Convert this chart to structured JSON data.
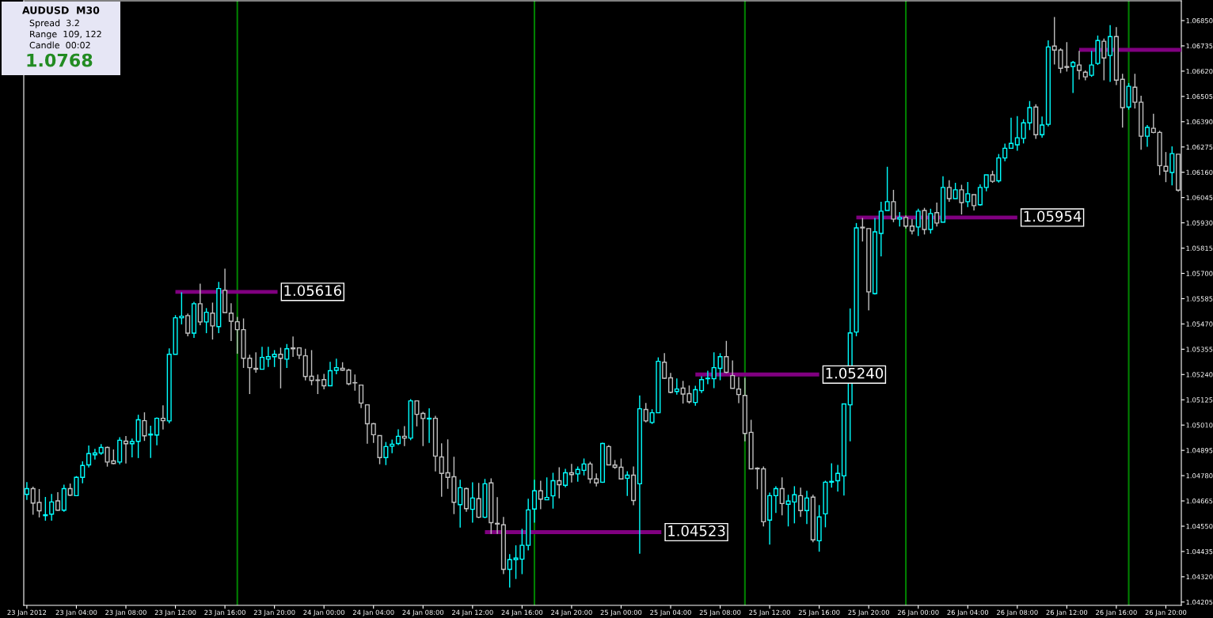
{
  "chart_data": {
    "type": "candlestick",
    "title": "AUDUSD  M30",
    "annotations": [
      "Spread  3.2",
      "Range  109, 122",
      "Candle  00:02",
      "1.0768",
      {
        "text": "1.05616",
        "x": "2012-01-23T20:15",
        "y": 1.05616
      },
      {
        "text": "1.04523",
        "x": "2012-01-25T03:15",
        "y": 1.04523
      },
      {
        "text": "1.05240",
        "x": "2012-01-25T16:00",
        "y": 1.0524
      },
      {
        "text": "1.05954",
        "x": "2012-01-26T08:00",
        "y": 1.05954
      }
    ],
    "colors": [
      "#00ffff",
      "#c0c0c0",
      "#c0c0c0",
      "#00ffff",
      "#00ffff",
      "#c0c0c0",
      "#00ffff",
      "#c0c0c0",
      "#00ffff",
      "#00ffff",
      "#00ffff",
      "#00ffff",
      "#00ffff",
      "#c0c0c0",
      "#c0c0c0",
      "#00ffff",
      "#c0c0c0",
      "#00ffff",
      "#00ffff",
      "#c0c0c0",
      "#00ffff",
      "#00ffff",
      "#c0c0c0",
      "#00ffff",
      "#00ffff",
      "#00ffff",
      "#c0c0c0",
      "#00ffff",
      "#c0c0c0",
      "#00ffff",
      "#c0c0c0",
      "#00ffff",
      "#c0c0c0",
      "#c0c0c0",
      "#c0c0c0",
      "#c0c0c0",
      "#c0c0c0",
      "#c0c0c0",
      "#00ffff",
      "#00ffff",
      "#00ffff",
      "#c0c0c0",
      "#00ffff",
      "#c0c0c0",
      "#c0c0c0",
      "#c0c0c0",
      "#c0c0c0",
      "#c0c0c0",
      "#c0c0c0",
      "#00ffff",
      "#00ffff",
      "#c0c0c0",
      "#c0c0c0",
      "#c0c0c0",
      "#c0c0c0",
      "#c0c0c0",
      "#c0c0c0",
      "#c0c0c0",
      "#00ffff",
      "#00ffff",
      "#00ffff",
      "#c0c0c0",
      "#00ffff",
      "#c0c0c0",
      "#c0c0c0",
      "#00ffff",
      "#c0c0c0",
      "#c0c0c0",
      "#c0c0c0",
      "#c0c0c0",
      "#00ffff",
      "#c0c0c0",
      "#00ffff",
      "#c0c0c0",
      "#00ffff",
      "#c0c0c0",
      "#c0c0c0",
      "#c0c0c0",
      "#00ffff",
      "#00ffff",
      "#00ffff",
      "#00ffff",
      "#00ffff",
      "#c0c0c0",
      "#00ffff",
      "#00ffff",
      "#c0c0c0",
      "#00ffff",
      "#c0c0c0",
      "#00ffff",
      "#00ffff",
      "#c0c0c0",
      "#c0c0c0",
      "#00ffff",
      "#c0c0c0",
      "#c0c0c0",
      "#c0c0c0",
      "#00ffff",
      "#c0c0c0",
      "#00ffff",
      "#c0c0c0",
      "#00ffff",
      "#00ffff",
      "#c0c0c0",
      "#c0c0c0",
      "#00ffff",
      "#c0c0c0",
      "#c0c0c0",
      "#00ffff",
      "#00ffff",
      "#00ffff",
      "#00ffff",
      "#00ffff",
      "#c0c0c0",
      "#c0c0c0",
      "#c0c0c0",
      "#c0c0c0",
      "#c0c0c0",
      "#c0c0c0",
      "#c0c0c0",
      "#00ffff",
      "#00ffff",
      "#c0c0c0",
      "#00ffff",
      "#00ffff",
      "#c0c0c0",
      "#00ffff",
      "#c0c0c0",
      "#00ffff",
      "#00ffff",
      "#00ffff",
      "#00ffff",
      "#00ffff",
      "#00ffff",
      "#00ffff",
      "#c0c0c0",
      "#c0c0c0",
      "#00ffff",
      "#00ffff",
      "#00ffff",
      "#c0c0c0",
      "#00ffff",
      "#c0c0c0",
      "#c0c0c0",
      "#00ffff",
      "#c0c0c0",
      "#00ffff",
      "#c0c0c0",
      "#00ffff",
      "#c0c0c0",
      "#00ffff",
      "#c0c0c0",
      "#00ffff",
      "#c0c0c0",
      "#00ffff",
      "#00ffff",
      "#c0c0c0",
      "#00ffff",
      "#00ffff",
      "#00ffff",
      "#00ffff",
      "#00ffff",
      "#00ffff",
      "#c0c0c0",
      "#00ffff",
      "#00ffff",
      "#c0c0c0",
      "#c0c0c0",
      "#c0c0c0",
      "#00ffff",
      "#c0c0c0",
      "#c0c0c0",
      "#00ffff",
      "#00ffff",
      "#c0c0c0",
      "#00ffff",
      "#c0c0c0",
      "#c0c0c0",
      "#00ffff",
      "#c0c0c0",
      "#c0c0c0",
      "#00ffff",
      "#c0c0c0",
      "#c0c0c0",
      "#c0c0c0",
      "#00ffff",
      "#c0c0c0"
    ],
    "x": [
      "2012-01-23T00:00",
      "2012-01-23T00:30",
      "2012-01-23T01:00",
      "2012-01-23T01:30",
      "2012-01-23T02:00",
      "2012-01-23T02:30",
      "2012-01-23T03:00",
      "2012-01-23T03:30",
      "2012-01-23T04:00",
      "2012-01-23T04:30",
      "2012-01-23T05:00",
      "2012-01-23T05:30",
      "2012-01-23T06:00",
      "2012-01-23T06:30",
      "2012-01-23T07:00",
      "2012-01-23T07:30",
      "2012-01-23T08:00",
      "2012-01-23T08:30",
      "2012-01-23T09:00",
      "2012-01-23T09:30",
      "2012-01-23T10:00",
      "2012-01-23T10:30",
      "2012-01-23T11:00",
      "2012-01-23T11:30",
      "2012-01-23T12:00",
      "2012-01-23T12:30",
      "2012-01-23T13:00",
      "2012-01-23T13:30",
      "2012-01-23T14:00",
      "2012-01-23T14:30",
      "2012-01-23T15:00",
      "2012-01-23T15:30",
      "2012-01-23T16:00",
      "2012-01-23T16:30",
      "2012-01-23T17:00",
      "2012-01-23T17:30",
      "2012-01-23T18:00",
      "2012-01-23T18:30",
      "2012-01-23T19:00",
      "2012-01-23T19:30",
      "2012-01-23T20:00",
      "2012-01-23T20:30",
      "2012-01-23T21:00",
      "2012-01-23T21:30",
      "2012-01-23T22:00",
      "2012-01-23T22:30",
      "2012-01-23T23:00",
      "2012-01-23T23:30",
      "2012-01-24T00:00",
      "2012-01-24T00:30",
      "2012-01-24T01:00",
      "2012-01-24T01:30",
      "2012-01-24T02:00",
      "2012-01-24T02:30",
      "2012-01-24T03:00",
      "2012-01-24T03:30",
      "2012-01-24T04:00",
      "2012-01-24T04:30",
      "2012-01-24T05:00",
      "2012-01-24T05:30",
      "2012-01-24T06:00",
      "2012-01-24T06:30",
      "2012-01-24T07:00",
      "2012-01-24T07:30",
      "2012-01-24T08:00",
      "2012-01-24T08:30",
      "2012-01-24T09:00",
      "2012-01-24T09:30",
      "2012-01-24T10:00",
      "2012-01-24T10:30",
      "2012-01-24T11:00",
      "2012-01-24T11:30",
      "2012-01-24T12:00",
      "2012-01-24T12:30",
      "2012-01-24T13:00",
      "2012-01-24T13:30",
      "2012-01-24T14:00",
      "2012-01-24T14:30",
      "2012-01-24T15:00",
      "2012-01-24T15:30",
      "2012-01-24T16:00",
      "2012-01-24T16:30",
      "2012-01-24T17:00",
      "2012-01-24T17:30",
      "2012-01-24T18:00",
      "2012-01-24T18:30",
      "2012-01-24T19:00",
      "2012-01-24T19:30",
      "2012-01-24T20:00",
      "2012-01-24T20:30",
      "2012-01-24T21:00",
      "2012-01-24T21:30",
      "2012-01-24T22:00",
      "2012-01-24T22:30",
      "2012-01-24T23:00",
      "2012-01-24T23:30",
      "2012-01-25T00:00",
      "2012-01-25T00:30",
      "2012-01-25T01:00",
      "2012-01-25T01:30",
      "2012-01-25T02:00",
      "2012-01-25T02:30",
      "2012-01-25T03:00",
      "2012-01-25T03:30",
      "2012-01-25T04:00",
      "2012-01-25T04:30",
      "2012-01-25T05:00",
      "2012-01-25T05:30",
      "2012-01-25T06:00",
      "2012-01-25T06:30",
      "2012-01-25T07:00",
      "2012-01-25T07:30",
      "2012-01-25T08:00",
      "2012-01-25T08:30",
      "2012-01-25T09:00",
      "2012-01-25T09:30",
      "2012-01-25T10:00",
      "2012-01-25T10:30",
      "2012-01-25T11:00",
      "2012-01-25T11:30",
      "2012-01-25T12:00",
      "2012-01-25T12:30",
      "2012-01-25T13:00",
      "2012-01-25T13:30",
      "2012-01-25T14:00",
      "2012-01-25T14:30",
      "2012-01-25T15:00",
      "2012-01-25T15:30",
      "2012-01-25T16:00",
      "2012-01-25T16:30",
      "2012-01-25T17:00",
      "2012-01-25T17:30",
      "2012-01-25T18:00",
      "2012-01-25T18:30",
      "2012-01-25T19:00",
      "2012-01-25T19:30",
      "2012-01-25T20:00",
      "2012-01-25T20:30",
      "2012-01-25T21:00",
      "2012-01-25T21:30",
      "2012-01-25T22:00",
      "2012-01-25T22:30",
      "2012-01-25T23:00",
      "2012-01-25T23:30",
      "2012-01-26T00:00",
      "2012-01-26T00:30",
      "2012-01-26T01:00",
      "2012-01-26T01:30",
      "2012-01-26T02:00",
      "2012-01-26T02:30",
      "2012-01-26T03:00",
      "2012-01-26T03:30",
      "2012-01-26T04:00",
      "2012-01-26T04:30",
      "2012-01-26T05:00",
      "2012-01-26T05:30",
      "2012-01-26T06:00",
      "2012-01-26T06:30",
      "2012-01-26T07:00",
      "2012-01-26T07:30",
      "2012-01-26T08:00",
      "2012-01-26T08:30",
      "2012-01-26T09:00",
      "2012-01-26T09:30",
      "2012-01-26T10:00",
      "2012-01-26T10:30",
      "2012-01-26T11:00",
      "2012-01-26T11:30",
      "2012-01-26T12:00",
      "2012-01-26T12:30",
      "2012-01-26T13:00",
      "2012-01-26T13:30",
      "2012-01-26T14:00",
      "2012-01-26T14:30",
      "2012-01-26T15:00",
      "2012-01-26T15:30",
      "2012-01-26T16:00",
      "2012-01-26T16:30",
      "2012-01-26T17:00",
      "2012-01-26T17:30",
      "2012-01-26T18:00",
      "2012-01-26T18:30",
      "2012-01-26T19:00",
      "2012-01-26T19:30",
      "2012-01-26T20:00",
      "2012-01-26T20:30",
      "2012-01-26T21:00"
    ],
    "ohlc": [
      [
        1.04695,
        1.04751,
        1.0467,
        1.04721
      ],
      [
        1.04721,
        1.0473,
        1.04602,
        1.04655
      ],
      [
        1.04658,
        1.04719,
        1.0459,
        1.0462
      ],
      [
        1.04598,
        1.04683,
        1.04575,
        1.04602
      ],
      [
        1.04605,
        1.04697,
        1.04575,
        1.0466
      ],
      [
        1.04665,
        1.04705,
        1.0462,
        1.04623
      ],
      [
        1.04623,
        1.04739,
        1.04616,
        1.04721
      ],
      [
        1.04721,
        1.04744,
        1.04688,
        1.04691
      ],
      [
        1.04689,
        1.04778,
        1.04689,
        1.04772
      ],
      [
        1.04772,
        1.04845,
        1.04745,
        1.04826
      ],
      [
        1.04829,
        1.04917,
        1.04817,
        1.0488
      ],
      [
        1.04875,
        1.04902,
        1.04853,
        1.04883
      ],
      [
        1.04883,
        1.04923,
        1.04875,
        1.04908
      ],
      [
        1.04908,
        1.04912,
        1.04821,
        1.04842
      ],
      [
        1.04847,
        1.04899,
        1.04832,
        1.04835
      ],
      [
        1.04842,
        1.04955,
        1.04832,
        1.04941
      ],
      [
        1.04937,
        1.0496,
        1.04835,
        1.04925
      ],
      [
        1.04925,
        1.04949,
        1.04863,
        1.04935
      ],
      [
        1.04936,
        1.05057,
        1.0486,
        1.05034
      ],
      [
        1.0503,
        1.05068,
        1.04938,
        1.04961
      ],
      [
        1.04965,
        1.05007,
        1.0486,
        1.04969
      ],
      [
        1.04965,
        1.05045,
        1.04918,
        1.05041
      ],
      [
        1.05041,
        1.051,
        1.0499,
        1.0503
      ],
      [
        1.05029,
        1.05359,
        1.05018,
        1.05332
      ],
      [
        1.05332,
        1.0551,
        1.05332,
        1.05498
      ],
      [
        1.05498,
        1.05614,
        1.05468,
        1.05505
      ],
      [
        1.05508,
        1.05517,
        1.05414,
        1.05428
      ],
      [
        1.05428,
        1.0557,
        1.05407,
        1.05562
      ],
      [
        1.05562,
        1.05653,
        1.05464,
        1.05479
      ],
      [
        1.05479,
        1.05542,
        1.05428,
        1.05523
      ],
      [
        1.05519,
        1.05567,
        1.05399,
        1.05461
      ],
      [
        1.05458,
        1.05661,
        1.05428,
        1.05631
      ],
      [
        1.05623,
        1.05722,
        1.05522,
        1.05522
      ],
      [
        1.05519,
        1.05564,
        1.05392,
        1.05482
      ],
      [
        1.0548,
        1.05502,
        1.05335,
        1.05444
      ],
      [
        1.05444,
        1.05495,
        1.0527,
        1.05314
      ],
      [
        1.05314,
        1.0533,
        1.05151,
        1.05271
      ],
      [
        1.05268,
        1.05341,
        1.05248,
        1.05264
      ],
      [
        1.05264,
        1.05366,
        1.05264,
        1.05318
      ],
      [
        1.0531,
        1.05366,
        1.05274,
        1.05321
      ],
      [
        1.05321,
        1.05351,
        1.05274,
        1.05332
      ],
      [
        1.05332,
        1.05362,
        1.05177,
        1.05314
      ],
      [
        1.0531,
        1.05379,
        1.0527,
        1.05357
      ],
      [
        1.05361,
        1.05413,
        1.0532,
        1.05357
      ],
      [
        1.05361,
        1.05361,
        1.0531,
        1.05328
      ],
      [
        1.05325,
        1.05357,
        1.05213,
        1.05231
      ],
      [
        1.05232,
        1.05351,
        1.05191,
        1.05213
      ],
      [
        1.05215,
        1.0524,
        1.05151,
        1.05213
      ],
      [
        1.05217,
        1.05243,
        1.05173,
        1.05189
      ],
      [
        1.05189,
        1.05298,
        1.05189,
        1.05257
      ],
      [
        1.05259,
        1.05312,
        1.05241,
        1.05271
      ],
      [
        1.05268,
        1.05296,
        1.05257,
        1.0526
      ],
      [
        1.0526,
        1.05266,
        1.05191,
        1.05198
      ],
      [
        1.05203,
        1.0524,
        1.05166,
        1.05202
      ],
      [
        1.05192,
        1.05192,
        1.05087,
        1.0511
      ],
      [
        1.05102,
        1.05102,
        1.04925,
        1.05016
      ],
      [
        1.05016,
        1.0502,
        1.04929,
        1.04966
      ],
      [
        1.04962,
        1.04962,
        1.04832,
        1.04862
      ],
      [
        1.04862,
        1.04933,
        1.04828,
        1.04912
      ],
      [
        1.04914,
        1.04944,
        1.04882,
        1.04923
      ],
      [
        1.04926,
        1.04991,
        1.04919,
        1.04959
      ],
      [
        1.04959,
        1.05005,
        1.04914,
        1.04951
      ],
      [
        1.04951,
        1.05128,
        1.04941,
        1.0512
      ],
      [
        1.0512,
        1.0512,
        1.05004,
        1.05059
      ],
      [
        1.05063,
        1.0507,
        1.04914,
        1.0504
      ],
      [
        1.05038,
        1.05086,
        1.04929,
        1.05041
      ],
      [
        1.05041,
        1.05052,
        1.04799,
        1.04869
      ],
      [
        1.04865,
        1.04927,
        1.04684,
        1.0479
      ],
      [
        1.04793,
        1.04945,
        1.0472,
        1.04772
      ],
      [
        1.04775,
        1.04866,
        1.04605,
        1.04659
      ],
      [
        1.04648,
        1.04761,
        1.04544,
        1.04725
      ],
      [
        1.04721,
        1.04725,
        1.04616,
        1.0463
      ],
      [
        1.04627,
        1.0475,
        1.04566,
        1.04678
      ],
      [
        1.04675,
        1.04747,
        1.04587,
        1.04591
      ],
      [
        1.04591,
        1.04765,
        1.04587,
        1.04743
      ],
      [
        1.04747,
        1.04768,
        1.04515,
        1.04566
      ],
      [
        1.04563,
        1.04682,
        1.04515,
        1.0456
      ],
      [
        1.04556,
        1.04592,
        1.04332,
        1.04354
      ],
      [
        1.04354,
        1.04423,
        1.04271,
        1.04398
      ],
      [
        1.04398,
        1.04463,
        1.0431,
        1.04405
      ],
      [
        1.044,
        1.04538,
        1.04332,
        1.04463
      ],
      [
        1.04463,
        1.04675,
        1.0444,
        1.04624
      ],
      [
        1.04628,
        1.04761,
        1.04566,
        1.04711
      ],
      [
        1.04711,
        1.04757,
        1.04627,
        1.04673
      ],
      [
        1.0467,
        1.04772,
        1.0467,
        1.04681
      ],
      [
        1.04688,
        1.04793,
        1.0463,
        1.04757
      ],
      [
        1.04757,
        1.04818,
        1.04677,
        1.04739
      ],
      [
        1.04736,
        1.04811,
        1.04727,
        1.04793
      ],
      [
        1.04793,
        1.04833,
        1.04749,
        1.04785
      ],
      [
        1.04788,
        1.04822,
        1.04752,
        1.04808
      ],
      [
        1.04804,
        1.04858,
        1.04781,
        1.04833
      ],
      [
        1.04833,
        1.04843,
        1.04745,
        1.04765
      ],
      [
        1.04765,
        1.0479,
        1.04731,
        1.04747
      ],
      [
        1.0475,
        1.0493,
        1.04747,
        1.04926
      ],
      [
        1.04912,
        1.04919,
        1.04829,
        1.04829
      ],
      [
        1.04828,
        1.04851,
        1.04811,
        1.04818
      ],
      [
        1.04818,
        1.04858,
        1.04765,
        1.04765
      ],
      [
        1.04768,
        1.048,
        1.04688,
        1.04782
      ],
      [
        1.04782,
        1.04822,
        1.04645,
        1.04667
      ],
      [
        1.04743,
        1.05145,
        1.04425,
        1.05084
      ],
      [
        1.05081,
        1.05111,
        1.05022,
        1.05029
      ],
      [
        1.05022,
        1.05082,
        1.05015,
        1.05066
      ],
      [
        1.05066,
        1.05318,
        1.05066,
        1.053
      ],
      [
        1.05296,
        1.05337,
        1.0522,
        1.05223
      ],
      [
        1.05225,
        1.05247,
        1.05155,
        1.05159
      ],
      [
        1.05163,
        1.05222,
        1.05148,
        1.05174
      ],
      [
        1.05178,
        1.05211,
        1.05108,
        1.05151
      ],
      [
        1.05153,
        1.0519,
        1.05108,
        1.05116
      ],
      [
        1.05113,
        1.05189,
        1.05098,
        1.05171
      ],
      [
        1.05167,
        1.05232,
        1.05156,
        1.05217
      ],
      [
        1.05221,
        1.05257,
        1.05196,
        1.05223
      ],
      [
        1.05221,
        1.05341,
        1.05178,
        1.05271
      ],
      [
        1.05268,
        1.05337,
        1.05214,
        1.05321
      ],
      [
        1.05321,
        1.05393,
        1.05246,
        1.0525
      ],
      [
        1.05235,
        1.05304,
        1.05177,
        1.05177
      ],
      [
        1.05174,
        1.05228,
        1.0511,
        1.05149
      ],
      [
        1.05145,
        1.05225,
        1.04936,
        1.04972
      ],
      [
        1.04977,
        1.05034,
        1.04811,
        1.04811
      ],
      [
        1.04814,
        1.04818,
        1.04718,
        1.04811
      ],
      [
        1.04811,
        1.04822,
        1.04549,
        1.0457
      ],
      [
        1.04578,
        1.04703,
        1.04466,
        1.04689
      ],
      [
        1.04689,
        1.04732,
        1.0461,
        1.04721
      ],
      [
        1.04721,
        1.04772,
        1.04599,
        1.04653
      ],
      [
        1.0465,
        1.04693,
        1.04549,
        1.04664
      ],
      [
        1.0466,
        1.04732,
        1.04563,
        1.04693
      ],
      [
        1.04689,
        1.04725,
        1.04592,
        1.04621
      ],
      [
        1.04621,
        1.04711,
        1.0456,
        1.04678
      ],
      [
        1.04682,
        1.04693,
        1.04477,
        1.04488
      ],
      [
        1.04484,
        1.04646,
        1.04434,
        1.04592
      ],
      [
        1.04606,
        1.04757,
        1.04545,
        1.0475
      ],
      [
        1.0475,
        1.04836,
        1.04725,
        1.04754
      ],
      [
        1.04757,
        1.04829,
        1.04707,
        1.0479
      ],
      [
        1.04779,
        1.05106,
        1.04689,
        1.05106
      ],
      [
        1.05102,
        1.05541,
        1.04936,
        1.05429
      ],
      [
        1.05433,
        1.05929,
        1.05414,
        1.05907
      ],
      [
        1.0591,
        1.05952,
        1.05845,
        1.05907
      ],
      [
        1.05904,
        1.05904,
        1.05532,
        1.05616
      ],
      [
        1.05608,
        1.05952,
        1.05604,
        1.05889
      ],
      [
        1.05882,
        1.06026,
        1.05777,
        1.05983
      ],
      [
        1.05986,
        1.06185,
        1.05986,
        1.06026
      ],
      [
        1.06026,
        1.0608,
        1.05933,
        1.05947
      ],
      [
        1.05947,
        1.05979,
        1.05913,
        1.05954
      ],
      [
        1.05954,
        1.05964,
        1.05904,
        1.05915
      ],
      [
        1.05915,
        1.05947,
        1.05877,
        1.05893
      ],
      [
        1.05911,
        1.05994,
        1.0587,
        1.05983
      ],
      [
        1.05986,
        1.05998,
        1.05877,
        1.059
      ],
      [
        1.059,
        1.05994,
        1.05881,
        1.05972
      ],
      [
        1.05976,
        1.06022,
        1.05913,
        1.05929
      ],
      [
        1.05933,
        1.06142,
        1.05933,
        1.06091
      ],
      [
        1.06091,
        1.06124,
        1.06026,
        1.0604
      ],
      [
        1.0604,
        1.06112,
        1.0604,
        1.0608
      ],
      [
        1.0608,
        1.06103,
        1.05968,
        1.06022
      ],
      [
        1.06026,
        1.06116,
        1.06001,
        1.06062
      ],
      [
        1.06058,
        1.06058,
        1.05986,
        1.06008
      ],
      [
        1.06012,
        1.06105,
        1.06008,
        1.06091
      ],
      [
        1.06091,
        1.06148,
        1.06073,
        1.06148
      ],
      [
        1.06148,
        1.06167,
        1.06112,
        1.06119
      ],
      [
        1.06121,
        1.06243,
        1.06113,
        1.06225
      ],
      [
        1.06225,
        1.0629,
        1.0621,
        1.06269
      ],
      [
        1.06269,
        1.06408,
        1.06267,
        1.06291
      ],
      [
        1.06285,
        1.06415,
        1.06258,
        1.06317
      ],
      [
        1.06314,
        1.06401,
        1.06291,
        1.06385
      ],
      [
        1.06385,
        1.06484,
        1.06352,
        1.06454
      ],
      [
        1.06457,
        1.06469,
        1.06312,
        1.06331
      ],
      [
        1.06331,
        1.06414,
        1.06317,
        1.06375
      ],
      [
        1.06378,
        1.0676,
        1.06369,
        1.0673
      ],
      [
        1.06734,
        1.06866,
        1.0665,
        1.06716
      ],
      [
        1.06716,
        1.06724,
        1.06611,
        1.06633
      ],
      [
        1.06641,
        1.06752,
        1.06618,
        1.06637
      ],
      [
        1.06641,
        1.06666,
        1.06521,
        1.06659
      ],
      [
        1.06648,
        1.06712,
        1.06582,
        1.06623
      ],
      [
        1.06615,
        1.06623,
        1.06578,
        1.06594
      ],
      [
        1.06601,
        1.06712,
        1.06594,
        1.06648
      ],
      [
        1.06655,
        1.06782,
        1.06648,
        1.06759
      ],
      [
        1.06756,
        1.06768,
        1.06578,
        1.0668
      ],
      [
        1.06691,
        1.06829,
        1.06571,
        1.06777
      ],
      [
        1.06777,
        1.0682,
        1.06557,
        1.06579
      ],
      [
        1.06583,
        1.06608,
        1.06363,
        1.06454
      ],
      [
        1.06457,
        1.06566,
        1.06445,
        1.06551
      ],
      [
        1.06547,
        1.06608,
        1.0645,
        1.06479
      ],
      [
        1.06479,
        1.06508,
        1.06262,
        1.06324
      ],
      [
        1.06324,
        1.06375,
        1.06276,
        1.06364
      ],
      [
        1.0636,
        1.06426,
        1.06337,
        1.06341
      ],
      [
        1.06341,
        1.06349,
        1.06147,
        1.0619
      ],
      [
        1.06187,
        1.06252,
        1.06115,
        1.06165
      ],
      [
        1.06159,
        1.06278,
        1.061,
        1.06245
      ],
      [
        1.06242,
        1.06242,
        1.06072,
        1.06079
      ]
    ],
    "series": [
      {
        "type": "line",
        "color": "#800080",
        "x": [
          "2012-01-23T12:00",
          "2012-01-23T20:15"
        ],
        "values": [
          1.05616,
          1.05616
        ]
      },
      {
        "type": "line",
        "color": "#800080",
        "x": [
          "2012-01-24T13:00",
          "2012-01-25T03:15"
        ],
        "values": [
          1.04523,
          1.04523
        ]
      },
      {
        "type": "line",
        "color": "#800080",
        "x": [
          "2012-01-25T06:00",
          "2012-01-25T16:00"
        ],
        "values": [
          1.0524,
          1.0524
        ]
      },
      {
        "type": "line",
        "color": "#800080",
        "x": [
          "2012-01-25T19:00",
          "2012-01-26T08:00"
        ],
        "values": [
          1.05954,
          1.05954
        ]
      },
      {
        "type": "line",
        "color": "#800080",
        "x": [
          "2012-01-26T13:00",
          "2012-01-26T21:15"
        ],
        "values": [
          1.06717,
          1.06717
        ]
      }
    ],
    "ref_lines": [
      {
        "axis": "x",
        "value": "2012-01-23T17:00",
        "color": "#008000"
      },
      {
        "axis": "x",
        "value": "2012-01-24T17:00",
        "color": "#008000"
      },
      {
        "axis": "x",
        "value": "2012-01-25T10:00",
        "color": "#008000"
      },
      {
        "axis": "x",
        "value": "2012-01-25T23:00",
        "color": "#008000"
      },
      {
        "axis": "x",
        "value": "2012-01-26T17:00",
        "color": "#008000"
      }
    ],
    "xlim": [
      "2012-01-22T23:45",
      "2012-01-26T21:15"
    ],
    "xticks": [
      {
        "value": "2012-01-23T00:00",
        "label": "23 Jan 2012"
      },
      {
        "value": "2012-01-23T04:00",
        "label": "23 Jan 04:00"
      },
      {
        "value": "2012-01-23T08:00",
        "label": "23 Jan 08:00"
      },
      {
        "value": "2012-01-23T12:00",
        "label": "23 Jan 12:00"
      },
      {
        "value": "2012-01-23T16:00",
        "label": "23 Jan 16:00"
      },
      {
        "value": "2012-01-23T20:00",
        "label": "23 Jan 20:00"
      },
      {
        "value": "2012-01-24T00:00",
        "label": "24 Jan 00:00"
      },
      {
        "value": "2012-01-24T04:00",
        "label": "24 Jan 04:00"
      },
      {
        "value": "2012-01-24T08:00",
        "label": "24 Jan 08:00"
      },
      {
        "value": "2012-01-24T12:00",
        "label": "24 Jan 12:00"
      },
      {
        "value": "2012-01-24T16:00",
        "label": "24 Jan 16:00"
      },
      {
        "value": "2012-01-24T20:00",
        "label": "24 Jan 20:00"
      },
      {
        "value": "2012-01-25T00:00",
        "label": "25 Jan 00:00"
      },
      {
        "value": "2012-01-25T04:00",
        "label": "25 Jan 04:00"
      },
      {
        "value": "2012-01-25T08:00",
        "label": "25 Jan 08:00"
      },
      {
        "value": "2012-01-25T12:00",
        "label": "25 Jan 12:00"
      },
      {
        "value": "2012-01-25T16:00",
        "label": "25 Jan 16:00"
      },
      {
        "value": "2012-01-25T20:00",
        "label": "25 Jan 20:00"
      },
      {
        "value": "2012-01-26T00:00",
        "label": "26 Jan 00:00"
      },
      {
        "value": "2012-01-26T04:00",
        "label": "26 Jan 04:00"
      },
      {
        "value": "2012-01-26T08:00",
        "label": "26 Jan 08:00"
      },
      {
        "value": "2012-01-26T12:00",
        "label": "26 Jan 12:00"
      },
      {
        "value": "2012-01-26T16:00",
        "label": "26 Jan 16:00"
      },
      {
        "value": "2012-01-26T20:00",
        "label": "26 Jan 20:00"
      }
    ],
    "ylim": [
      1.0419,
      1.0694
    ],
    "yticks": [
      {
        "value": 1.04205,
        "label": "1.04205"
      },
      {
        "value": 1.0432,
        "label": "1.04320"
      },
      {
        "value": 1.04435,
        "label": "1.04435"
      },
      {
        "value": 1.0455,
        "label": "1.04550"
      },
      {
        "value": 1.04665,
        "label": "1.04665"
      },
      {
        "value": 1.0478,
        "label": "1.04780"
      },
      {
        "value": 1.04895,
        "label": "1.04895"
      },
      {
        "value": 1.0501,
        "label": "1.05010"
      },
      {
        "value": 1.05125,
        "label": "1.05125"
      },
      {
        "value": 1.0524,
        "label": "1.05240"
      },
      {
        "value": 1.05355,
        "label": "1.05355"
      },
      {
        "value": 1.0547,
        "label": "1.05470"
      },
      {
        "value": 1.05585,
        "label": "1.05585"
      },
      {
        "value": 1.057,
        "label": "1.05700"
      },
      {
        "value": 1.05815,
        "label": "1.05815"
      },
      {
        "value": 1.0593,
        "label": "1.05930"
      },
      {
        "value": 1.06045,
        "label": "1.06045"
      },
      {
        "value": 1.0616,
        "label": "1.06160"
      },
      {
        "value": 1.06275,
        "label": "1.06275"
      },
      {
        "value": 1.0639,
        "label": "1.06390"
      },
      {
        "value": 1.06505,
        "label": "1.06505"
      },
      {
        "value": 1.0662,
        "label": "1.06620"
      },
      {
        "value": 1.06735,
        "label": "1.06735"
      },
      {
        "value": 1.0685,
        "label": "1.06850"
      }
    ]
  }
}
